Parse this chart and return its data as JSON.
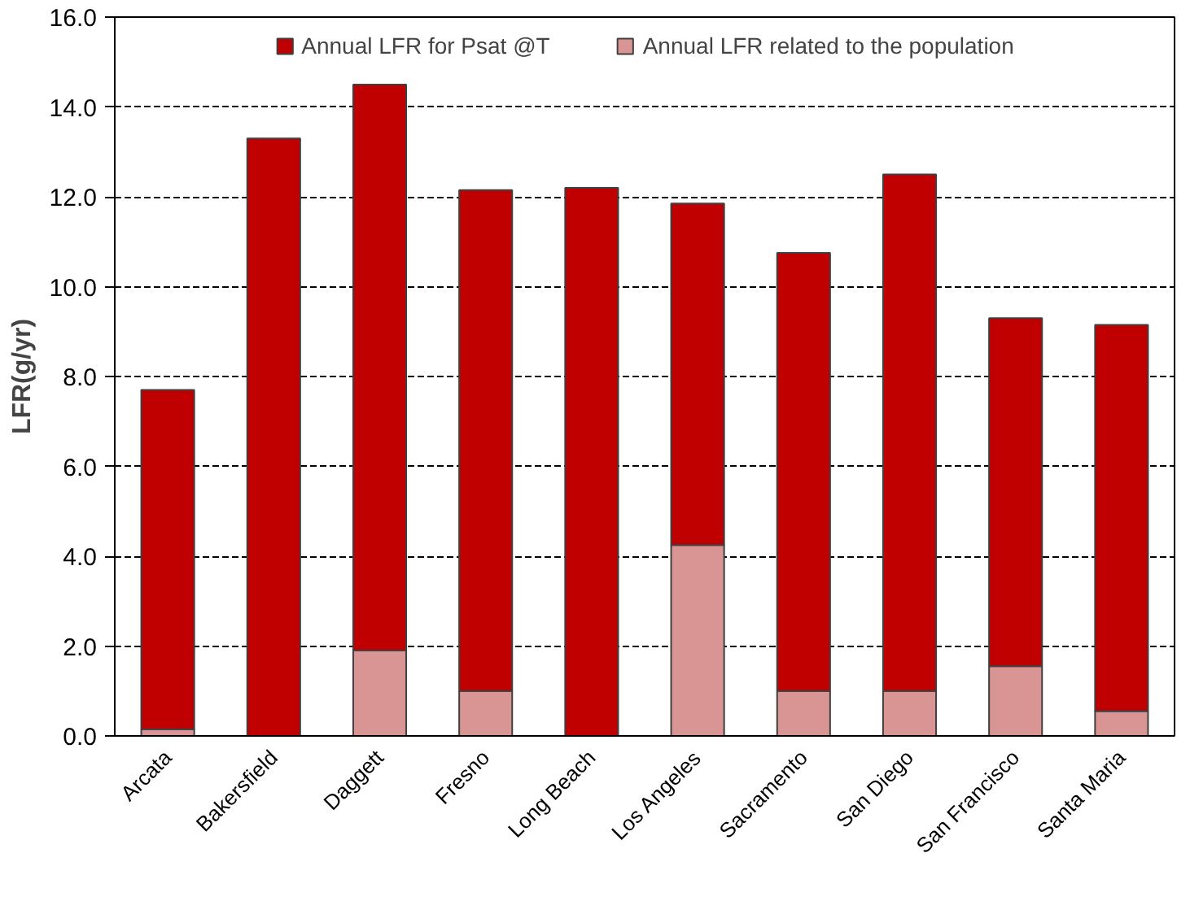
{
  "chart_data": {
    "type": "bar",
    "stacked": true,
    "ylabel": "LFR(g/yr)",
    "categories": [
      "Arcata",
      "Bakersfield",
      "Daggett",
      "Fresno",
      "Long Beach",
      "Los Angeles",
      "Sacramento",
      "San Diego",
      "San Francisco",
      "Santa Maria"
    ],
    "series": [
      {
        "name": "Annual LFR related to the population",
        "color": "#d99594",
        "values": [
          0.15,
          0,
          1.9,
          1.0,
          0,
          4.25,
          1.0,
          1.0,
          1.55,
          0.55
        ]
      },
      {
        "name": "Annual LFR for Psat @T",
        "color": "#c00000",
        "values": [
          7.55,
          13.3,
          12.6,
          11.15,
          12.2,
          7.6,
          9.75,
          11.5,
          7.75,
          8.6
        ]
      }
    ],
    "ylim": [
      0,
      16
    ],
    "yticks": [
      {
        "value": 0,
        "label": "0.0"
      },
      {
        "value": 2,
        "label": "2.0"
      },
      {
        "value": 4,
        "label": "4.0"
      },
      {
        "value": 6,
        "label": "6.0"
      },
      {
        "value": 8,
        "label": "8.0"
      },
      {
        "value": 10,
        "label": "10.0"
      },
      {
        "value": 12,
        "label": "12.0"
      },
      {
        "value": 14,
        "label": "14.0"
      },
      {
        "value": 16,
        "label": "16.0"
      }
    ],
    "grid": "y",
    "legend": "top"
  }
}
